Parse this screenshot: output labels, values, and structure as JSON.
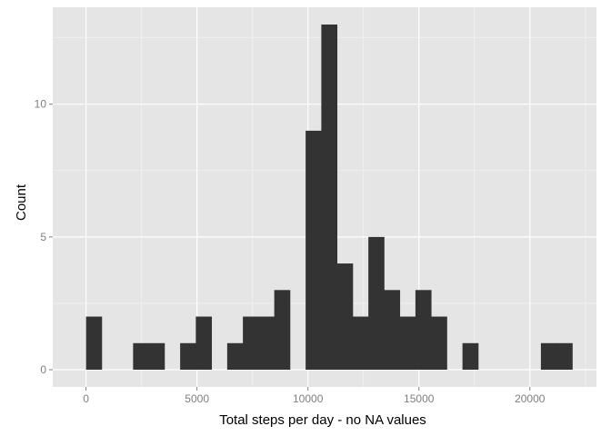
{
  "chart_data": {
    "type": "bar",
    "title": "",
    "xlabel": "Total steps per day - no NA values",
    "ylabel": "Count",
    "xlim": [
      -1500,
      23000
    ],
    "ylim": [
      -0.65,
      13.65
    ],
    "x_ticks": [
      0,
      5000,
      10000,
      15000,
      20000
    ],
    "x_tick_labels": [
      "0",
      "5000",
      "10000",
      "15000",
      "20000"
    ],
    "y_ticks": [
      0,
      5,
      10
    ],
    "y_tick_labels": [
      "0",
      "5",
      "10"
    ],
    "grid": true,
    "bin_width": 706.8,
    "bins": [
      {
        "start": 0,
        "end": 706.8,
        "count": 2
      },
      {
        "start": 2120.4,
        "end": 2827.2,
        "count": 1
      },
      {
        "start": 2827.2,
        "end": 3534.0,
        "count": 1
      },
      {
        "start": 4240.8,
        "end": 4947.6,
        "count": 1
      },
      {
        "start": 4947.6,
        "end": 5654.4,
        "count": 2
      },
      {
        "start": 6361.2,
        "end": 7068.0,
        "count": 1
      },
      {
        "start": 7068.0,
        "end": 7774.8,
        "count": 2
      },
      {
        "start": 7774.8,
        "end": 8481.6,
        "count": 2
      },
      {
        "start": 8481.6,
        "end": 9188.4,
        "count": 3
      },
      {
        "start": 9895.2,
        "end": 10602.0,
        "count": 9
      },
      {
        "start": 10602.0,
        "end": 11308.8,
        "count": 13
      },
      {
        "start": 11308.8,
        "end": 12015.6,
        "count": 4
      },
      {
        "start": 12015.6,
        "end": 12722.4,
        "count": 2
      },
      {
        "start": 12722.4,
        "end": 13429.2,
        "count": 5
      },
      {
        "start": 13429.2,
        "end": 14136.0,
        "count": 3
      },
      {
        "start": 14136.0,
        "end": 14842.8,
        "count": 2
      },
      {
        "start": 14842.8,
        "end": 15549.6,
        "count": 3
      },
      {
        "start": 15549.6,
        "end": 16256.4,
        "count": 2
      },
      {
        "start": 16963.2,
        "end": 17670.0,
        "count": 1
      },
      {
        "start": 20497.2,
        "end": 21204.0,
        "count": 1
      },
      {
        "start": 21204.0,
        "end": 21910.8,
        "count": 1
      }
    ],
    "colors": {
      "panel_background": "#e5e5e5",
      "grid_major": "#ffffff",
      "grid_minor": "#f2f2f2",
      "bar_fill": "#333333",
      "tick_label": "#7f7f7f",
      "axis_title": "#000000"
    }
  }
}
